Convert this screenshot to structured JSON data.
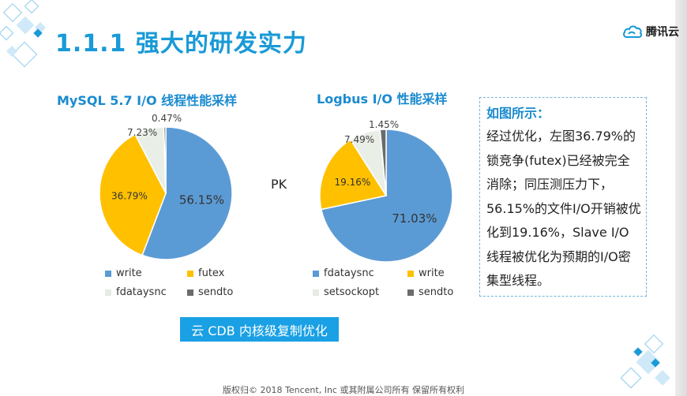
{
  "slide": {
    "title": "1.1.1 强大的研发实力",
    "brand": "腾讯云",
    "pk": "PK",
    "banner": "云 CDB 内核级复制优化",
    "footer": "版权归© 2018 Tencent, Inc 或其附属公司所有 保留所有权利"
  },
  "note": {
    "heading": "如图所示：",
    "body": "经过优化，左图36.79%的锁竞争(futex)已经被完全消除；同压测压力下，56.15%的文件I/O开销被优化到19.16%，Slave I/O线程被优化为预期的I/O密集型线程。"
  },
  "colors": {
    "blue": "#5b9bd5",
    "orange": "#ffc000",
    "light": "#e9efe6",
    "gray": "#6b6b6b",
    "accent": "#1a9ad7"
  },
  "chart_data": [
    {
      "type": "pie",
      "title": "MySQL 5.7 I/O 线程性能采样",
      "slices": [
        {
          "label": "write",
          "value": 56.15,
          "display": "56.15%",
          "color": "#5b9bd5"
        },
        {
          "label": "futex",
          "value": 36.79,
          "display": "36.79%",
          "color": "#ffc000"
        },
        {
          "label": "fdataysnc",
          "value": 7.23,
          "display": "7.23%",
          "color": "#e9efe6"
        },
        {
          "label": "sendto",
          "value": 0.47,
          "display": "0.47%",
          "color": "#6b6b6b"
        }
      ],
      "legend_order": [
        "write",
        "futex",
        "fdataysnc",
        "sendto"
      ],
      "legend_placement": "bottom"
    },
    {
      "type": "pie",
      "title": "Logbus I/O 性能采样",
      "slices": [
        {
          "label": "fdataysnc",
          "value": 71.03,
          "display": "71.03%",
          "color": "#5b9bd5"
        },
        {
          "label": "write",
          "value": 19.16,
          "display": "19.16%",
          "color": "#ffc000"
        },
        {
          "label": "setsockopt",
          "value": 7.49,
          "display": "7.49%",
          "color": "#e9efe6"
        },
        {
          "label": "sendto",
          "value": 1.45,
          "display": "1.45%",
          "color": "#6b6b6b"
        }
      ],
      "legend_order": [
        "fdataysnc",
        "write",
        "setsockopt",
        "sendto"
      ],
      "legend_placement": "bottom"
    }
  ]
}
